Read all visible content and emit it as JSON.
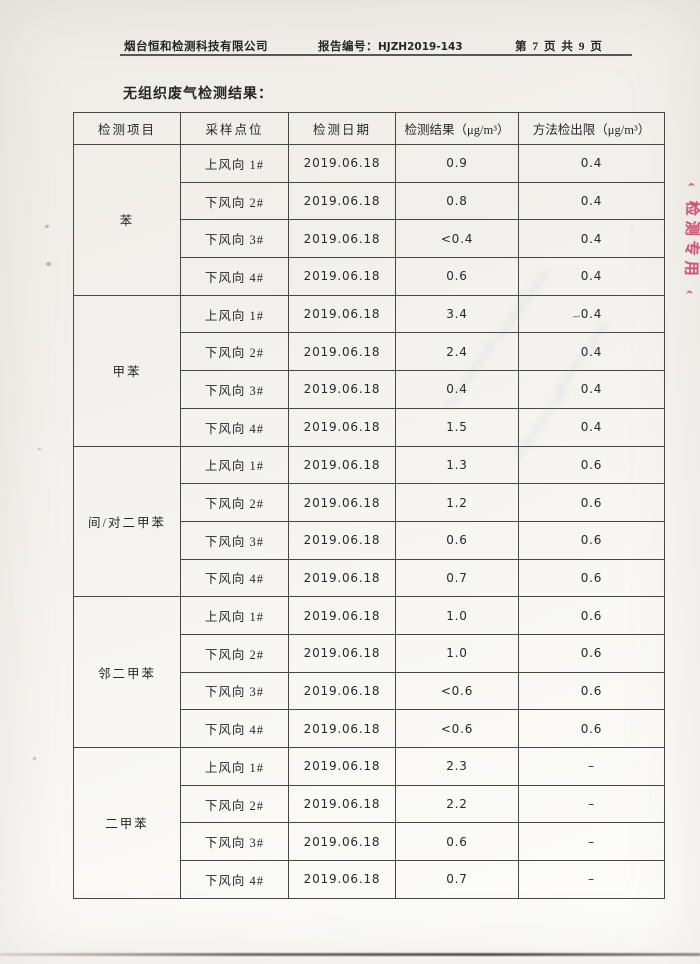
{
  "page": {
    "header": {
      "company": "烟台恒和检测科技有限公司",
      "report_no_label": "报告编号：",
      "report_no": "HJZH2019-143",
      "page_info": "第 7 页 共 9 页"
    },
    "section_title": "无组织废气检测结果：",
    "stamp_fragment": {
      "text": "‹ 检测专用 ‹",
      "color": "#c73b61"
    },
    "pencil_mark": "~"
  },
  "table": {
    "columns": [
      "检测项目",
      "采样点位",
      "检测日期",
      "检测结果（μg/m³）",
      "方法检出限（μg/m³）"
    ],
    "groups": [
      {
        "item": "苯",
        "rows": [
          {
            "point": "上风向 1#",
            "date": "2019.06.18",
            "result": "0.9",
            "limit": "0.4"
          },
          {
            "point": "下风向 2#",
            "date": "2019.06.18",
            "result": "0.8",
            "limit": "0.4"
          },
          {
            "point": "下风向 3#",
            "date": "2019.06.18",
            "result": "<0.4",
            "limit": "0.4"
          },
          {
            "point": "下风向 4#",
            "date": "2019.06.18",
            "result": "0.6",
            "limit": "0.4"
          }
        ]
      },
      {
        "item": "甲苯",
        "rows": [
          {
            "point": "上风向 1#",
            "date": "2019.06.18",
            "result": "3.4",
            "limit": "0.4"
          },
          {
            "point": "下风向 2#",
            "date": "2019.06.18",
            "result": "2.4",
            "limit": "0.4"
          },
          {
            "point": "下风向 3#",
            "date": "2019.06.18",
            "result": "0.4",
            "limit": "0.4"
          },
          {
            "point": "下风向 4#",
            "date": "2019.06.18",
            "result": "1.5",
            "limit": "0.4"
          }
        ]
      },
      {
        "item": "间/对二甲苯",
        "rows": [
          {
            "point": "上风向 1#",
            "date": "2019.06.18",
            "result": "1.3",
            "limit": "0.6"
          },
          {
            "point": "下风向 2#",
            "date": "2019.06.18",
            "result": "1.2",
            "limit": "0.6"
          },
          {
            "point": "下风向 3#",
            "date": "2019.06.18",
            "result": "0.6",
            "limit": "0.6"
          },
          {
            "point": "下风向 4#",
            "date": "2019.06.18",
            "result": "0.7",
            "limit": "0.6"
          }
        ]
      },
      {
        "item": "邻二甲苯",
        "rows": [
          {
            "point": "上风向 1#",
            "date": "2019.06.18",
            "result": "1.0",
            "limit": "0.6"
          },
          {
            "point": "下风向 2#",
            "date": "2019.06.18",
            "result": "1.0",
            "limit": "0.6"
          },
          {
            "point": "下风向 3#",
            "date": "2019.06.18",
            "result": "<0.6",
            "limit": "0.6"
          },
          {
            "point": "下风向 4#",
            "date": "2019.06.18",
            "result": "<0.6",
            "limit": "0.6"
          }
        ]
      },
      {
        "item": "二甲苯",
        "rows": [
          {
            "point": "上风向 1#",
            "date": "2019.06.18",
            "result": "2.3",
            "limit": "–"
          },
          {
            "point": "下风向 2#",
            "date": "2019.06.18",
            "result": "2.2",
            "limit": "–"
          },
          {
            "point": "下风向 3#",
            "date": "2019.06.18",
            "result": "0.6",
            "limit": "–"
          },
          {
            "point": "下风向 4#",
            "date": "2019.06.18",
            "result": "0.7",
            "limit": "–"
          }
        ]
      }
    ]
  }
}
